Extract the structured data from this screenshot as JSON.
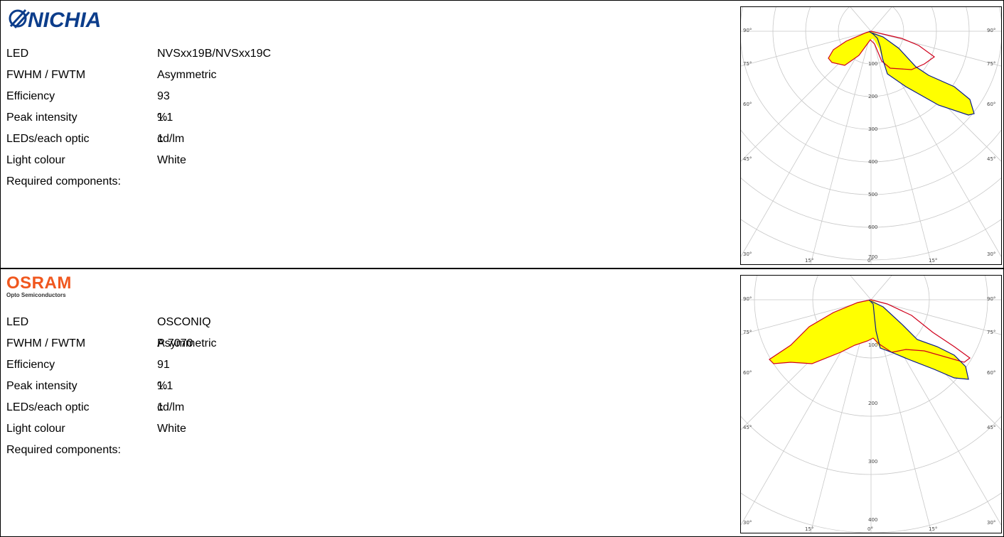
{
  "panels": [
    {
      "brand": {
        "name": "NICHIA",
        "color": "#0c3d8b"
      },
      "specs": [
        {
          "key": "LED",
          "value": "NVSxx19B/NVSxx19C"
        },
        {
          "key": "FWHM / FWTM",
          "value": "Asymmetric"
        },
        {
          "key": "Efficiency",
          "value": "93 %"
        },
        {
          "key": "Peak intensity",
          "value": "1.1 cd/lm"
        },
        {
          "key": "LEDs/each optic",
          "value": "1"
        },
        {
          "key": "Light colour",
          "value": "White"
        },
        {
          "key": "Required components:",
          "value": ""
        }
      ],
      "polar": {
        "radial_labels": [
          "100",
          "200",
          "300",
          "400",
          "500",
          "600",
          "700"
        ],
        "angle_labels_side": [
          "90°",
          "75°",
          "60°",
          "45°",
          "30°"
        ],
        "angle_labels_bottom": [
          "15°",
          "0°",
          "15°"
        ],
        "colors": {
          "fill": "#ffff00",
          "c0": "#d0001c",
          "c90": "#0a1a8c"
        }
      }
    },
    {
      "brand": {
        "name": "OSRAM",
        "tagline": "Opto Semiconductors",
        "color": "#f0571e"
      },
      "specs": [
        {
          "key": "LED",
          "value": "OSCONIQ P 7070"
        },
        {
          "key": "FWHM / FWTM",
          "value": "Asymmetric"
        },
        {
          "key": "Efficiency",
          "value": "91 %"
        },
        {
          "key": "Peak intensity",
          "value": "1.1 cd/lm"
        },
        {
          "key": "LEDs/each optic",
          "value": "1"
        },
        {
          "key": "Light colour",
          "value": "White"
        },
        {
          "key": "Required components:",
          "value": ""
        }
      ],
      "polar": {
        "radial_labels": [
          "100",
          "200",
          "300",
          "400"
        ],
        "angle_labels_side": [
          "90°",
          "75°",
          "60°",
          "45°",
          "30°"
        ],
        "angle_labels_bottom": [
          "15°",
          "0°",
          "15°"
        ],
        "colors": {
          "fill": "#ffff00",
          "c0": "#d0001c",
          "c90": "#0a1a8c"
        }
      }
    }
  ]
}
